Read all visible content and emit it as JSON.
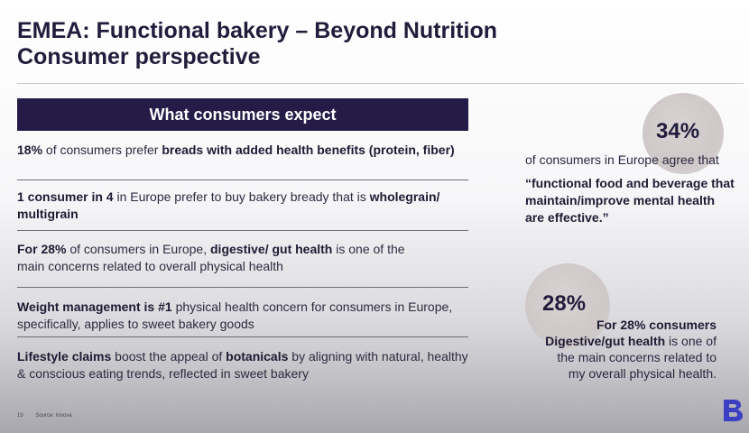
{
  "title": {
    "line1": "EMEA: Functional bakery – Beyond Nutrition",
    "line2": "Consumer perspective"
  },
  "expect": {
    "heading": "What consumers expect",
    "items": [
      {
        "b1": "18%",
        "t1": " of consumers prefer ",
        "b2": "breads with added health benefits (protein, fiber)",
        "t2": ""
      },
      {
        "b1": "1 consumer in 4",
        "t1": " in Europe prefer to buy bakery bready that is ",
        "b2": "wholegrain/ multigrain",
        "t2": ""
      },
      {
        "b1": "For 28%",
        "t1": " of consumers in Europe, ",
        "b2": "digestive/ gut health",
        "t2": " is one of the main concerns related to overall physical health"
      },
      {
        "b1": "Weight management is #1",
        "t1": " physical health concern for consumers in Europe, specifically, applies to sweet bakery goods",
        "b2": "",
        "t2": ""
      },
      {
        "b1": "Lifestyle claims",
        "t1": " boost the appeal of ",
        "b2": "botanicals",
        "t2": " by aligning with natural, healthy & conscious eating trends, reflected in sweet bakery"
      }
    ]
  },
  "stat1": {
    "value": "34%",
    "text": "of consumers in Europe agree that",
    "quote": "“functional food and beverage that maintain/improve mental health are effective.”"
  },
  "stat2": {
    "value": "28%",
    "b1": "For 28% consumers",
    "b2": "Digestive/gut health",
    "t1": " is one of the main concerns related to my overall physical health."
  },
  "footer": {
    "page": "19",
    "source": "Source: Innova"
  },
  "logo": {
    "letter": "B",
    "color": "#3a3fc4"
  },
  "colors": {
    "banner": "#241b47",
    "title": "#201c3b"
  }
}
